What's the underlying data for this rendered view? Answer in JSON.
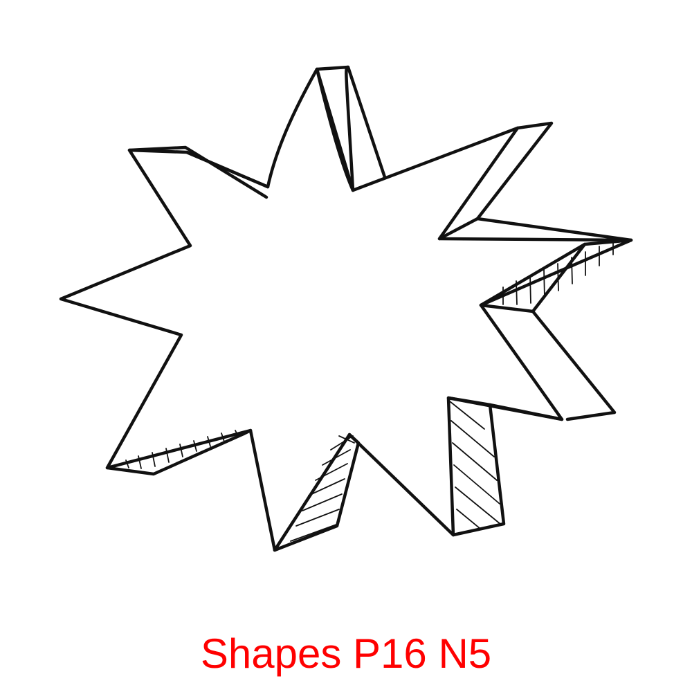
{
  "caption": {
    "text": "Shapes P16 N5",
    "color": "#ff0000"
  },
  "figure": {
    "subject": "starburst-shape",
    "points": 9,
    "style": "hand-drawn line art with 3D extruded sides",
    "stroke_color": "#111111",
    "background_color": "#ffffff"
  }
}
